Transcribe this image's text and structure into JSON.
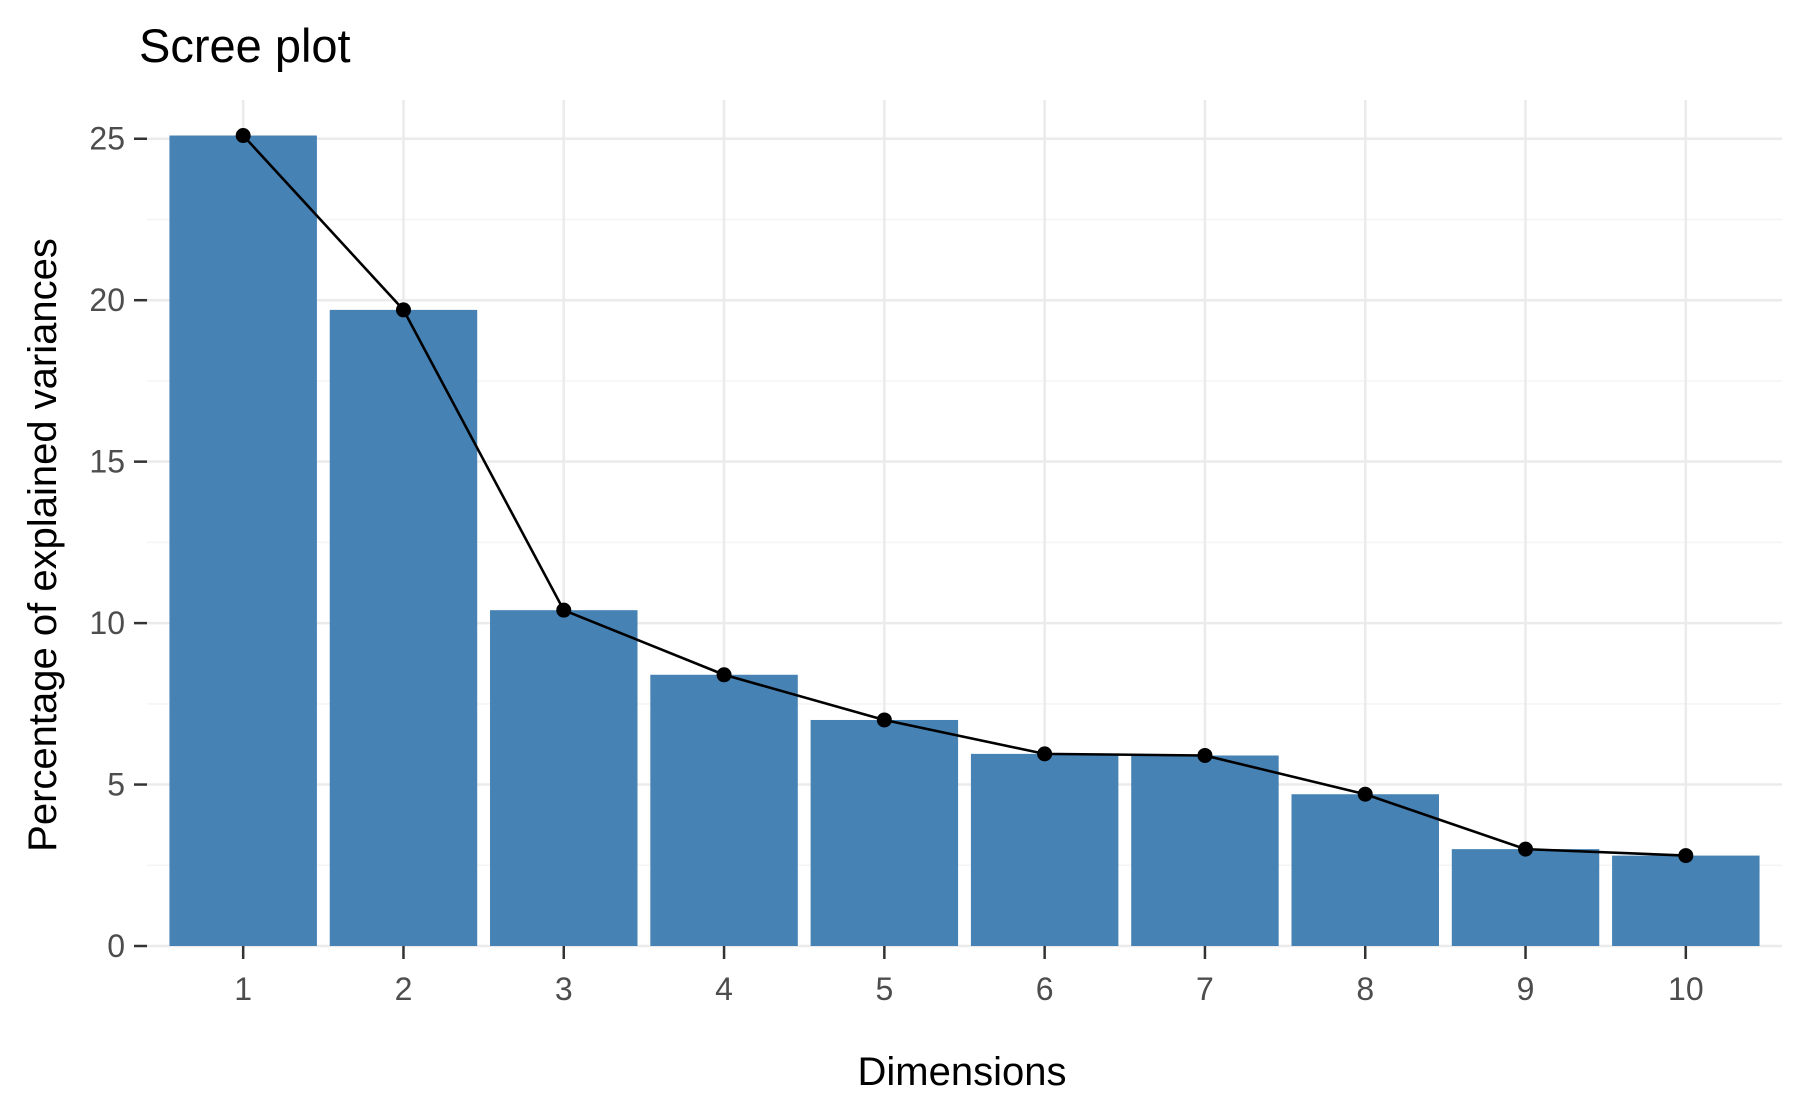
{
  "chart_data": {
    "type": "bar",
    "title": "Scree plot",
    "xlabel": "Dimensions",
    "ylabel": "Percentage of explained variances",
    "categories": [
      "1",
      "2",
      "3",
      "4",
      "5",
      "6",
      "7",
      "8",
      "9",
      "10"
    ],
    "values": [
      25.1,
      19.7,
      10.4,
      8.4,
      7.0,
      5.95,
      5.9,
      4.7,
      3.0,
      2.8
    ],
    "line_overlay": true,
    "ylim": [
      0,
      26.2
    ],
    "yticks": [
      0,
      5,
      10,
      15,
      20,
      25
    ],
    "yticklabels": [
      "0",
      "5",
      "10",
      "15",
      "20",
      "25"
    ],
    "grid": true,
    "colors": {
      "bar": "#4682b4",
      "line": "#000000",
      "point": "#000000",
      "grid_major": "#ebebeb",
      "grid_minor": "#f4f4f4",
      "background": "#ffffff"
    }
  }
}
